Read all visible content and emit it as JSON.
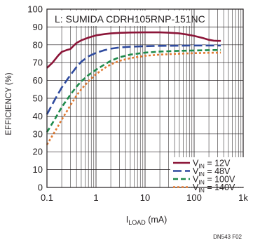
{
  "chart_data": {
    "type": "line",
    "title": "",
    "annotation": "L: SUMIDA CDRH105RNP-151NC",
    "xlabel": {
      "main": "I",
      "sub": "LOAD",
      "unit": " (mA)"
    },
    "ylabel": "EFFICIENCY (%)",
    "x_scale": "log",
    "xlim": [
      0.1,
      1000
    ],
    "ylim": [
      0,
      100
    ],
    "grid": true,
    "legend_position": "bottom-right",
    "x_ticks": [
      {
        "value": 0.1,
        "label": "0.1"
      },
      {
        "value": 1,
        "label": "1"
      },
      {
        "value": 10,
        "label": "10"
      },
      {
        "value": 100,
        "label": "100"
      },
      {
        "value": 1000,
        "label": "1k"
      }
    ],
    "y_ticks": [
      {
        "value": 0,
        "label": "0"
      },
      {
        "value": 10,
        "label": "10"
      },
      {
        "value": 20,
        "label": "20"
      },
      {
        "value": 30,
        "label": "30"
      },
      {
        "value": 40,
        "label": "40"
      },
      {
        "value": 50,
        "label": "50"
      },
      {
        "value": 60,
        "label": "60"
      },
      {
        "value": 70,
        "label": "70"
      },
      {
        "value": 80,
        "label": "80"
      },
      {
        "value": 90,
        "label": "90"
      },
      {
        "value": 100,
        "label": "100"
      }
    ],
    "series": [
      {
        "legend": {
          "v": "V",
          "sub": "IN",
          "rest": " = 12V"
        },
        "color": "#8b1538",
        "dash": "",
        "points": [
          [
            0.1,
            67
          ],
          [
            0.13,
            70
          ],
          [
            0.17,
            74
          ],
          [
            0.2,
            76
          ],
          [
            0.25,
            77
          ],
          [
            0.3,
            77.6
          ],
          [
            0.35,
            79.5
          ],
          [
            0.4,
            81
          ],
          [
            0.5,
            82.5
          ],
          [
            0.7,
            84
          ],
          [
            1,
            85.3
          ],
          [
            1.5,
            86
          ],
          [
            2,
            86.4
          ],
          [
            3,
            86.7
          ],
          [
            5,
            86.9
          ],
          [
            10,
            87
          ],
          [
            20,
            87
          ],
          [
            30,
            86.8
          ],
          [
            50,
            86.4
          ],
          [
            70,
            85.8
          ],
          [
            100,
            85
          ],
          [
            150,
            83.8
          ],
          [
            200,
            82.8
          ],
          [
            250,
            82.3
          ],
          [
            300,
            82.2
          ],
          [
            350,
            82.2
          ]
        ]
      },
      {
        "legend": {
          "v": "V",
          "sub": "IN",
          "rest": " = 48V"
        },
        "color": "#2e4a9e",
        "dash": "12,5",
        "points": [
          [
            0.1,
            41
          ],
          [
            0.15,
            50
          ],
          [
            0.2,
            56
          ],
          [
            0.3,
            63
          ],
          [
            0.4,
            67.5
          ],
          [
            0.5,
            70.5
          ],
          [
            0.7,
            73.5
          ],
          [
            1,
            75.5
          ],
          [
            1.5,
            77
          ],
          [
            2,
            77.8
          ],
          [
            3,
            78.5
          ],
          [
            5,
            78.9
          ],
          [
            10,
            79.2
          ],
          [
            20,
            79.4
          ],
          [
            50,
            79.5
          ],
          [
            100,
            79.6
          ],
          [
            200,
            79.6
          ],
          [
            350,
            79.6
          ]
        ]
      },
      {
        "legend": {
          "v": "V",
          "sub": "IN",
          "rest": " = 100V"
        },
        "color": "#1e8a4a",
        "dash": "7,4",
        "points": [
          [
            0.1,
            31
          ],
          [
            0.15,
            39
          ],
          [
            0.2,
            45
          ],
          [
            0.3,
            52
          ],
          [
            0.4,
            56.5
          ],
          [
            0.5,
            59.5
          ],
          [
            0.7,
            63
          ],
          [
            1,
            66
          ],
          [
            1.5,
            69
          ],
          [
            2,
            71
          ],
          [
            3,
            73
          ],
          [
            5,
            74.5
          ],
          [
            10,
            75.6
          ],
          [
            20,
            76.2
          ],
          [
            50,
            76.6
          ],
          [
            100,
            76.8
          ],
          [
            200,
            77
          ],
          [
            350,
            77.1
          ]
        ]
      },
      {
        "legend": {
          "v": "V",
          "sub": "IN",
          "rest": " = 140V"
        },
        "color": "#e07a32",
        "dash": "3,3",
        "points": [
          [
            0.1,
            24
          ],
          [
            0.15,
            32
          ],
          [
            0.2,
            38
          ],
          [
            0.3,
            46
          ],
          [
            0.4,
            51.5
          ],
          [
            0.5,
            55
          ],
          [
            0.7,
            59.5
          ],
          [
            1,
            63.5
          ],
          [
            1.5,
            67
          ],
          [
            2,
            69
          ],
          [
            3,
            71
          ],
          [
            5,
            72.5
          ],
          [
            10,
            73.8
          ],
          [
            20,
            74.5
          ],
          [
            50,
            75
          ],
          [
            100,
            75.3
          ],
          [
            200,
            75.5
          ],
          [
            350,
            75.6
          ]
        ]
      }
    ],
    "footnote": "DN543 F02"
  }
}
